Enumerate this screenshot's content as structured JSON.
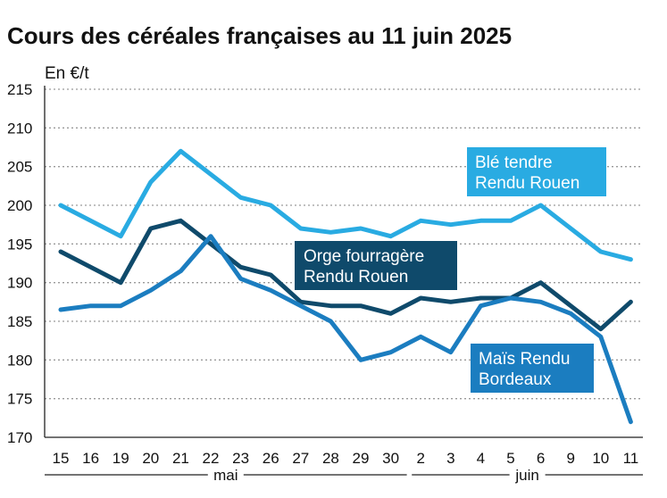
{
  "chart_data": {
    "type": "line",
    "title": "Cours des céréales françaises au 11 juin 2025",
    "unit_label": "En €/t",
    "ylim": [
      170,
      215
    ],
    "yticks": [
      170,
      175,
      180,
      185,
      190,
      195,
      200,
      205,
      210,
      215
    ],
    "grid": true,
    "categories": [
      "15",
      "16",
      "19",
      "20",
      "21",
      "22",
      "23",
      "26",
      "27",
      "28",
      "29",
      "30",
      "2",
      "3",
      "4",
      "5",
      "6",
      "9",
      "10",
      "11"
    ],
    "month_labels": [
      {
        "label": "mai",
        "from": 0,
        "to": 11
      },
      {
        "label": "juin",
        "from": 12,
        "to": 19
      }
    ],
    "series": [
      {
        "name": "Blé tendre Rendu Rouen",
        "name_lines": [
          "Blé tendre",
          "Rendu Rouen"
        ],
        "color": "#29abe2",
        "values": [
          200,
          198,
          196,
          203,
          207,
          204,
          201,
          200,
          197,
          196.5,
          197,
          196,
          198,
          197.5,
          198,
          198,
          200,
          197,
          194,
          193
        ]
      },
      {
        "name": "Orge fourragère Rendu Rouen",
        "name_lines": [
          "Orge fourragère",
          "Rendu Rouen"
        ],
        "color": "#0f4a6b",
        "values": [
          194,
          192,
          190,
          197,
          198,
          195,
          192,
          191,
          187.5,
          187,
          187,
          186,
          188,
          187.5,
          188,
          188,
          190,
          187,
          184,
          187.5
        ]
      },
      {
        "name": "Maïs Rendu Bordeaux",
        "name_lines": [
          "Maïs Rendu",
          "Bordeaux"
        ],
        "color": "#1b7dc0",
        "values": [
          186.5,
          187,
          187,
          189,
          191.5,
          196,
          190.5,
          189,
          187,
          185,
          180,
          181,
          183,
          181,
          187,
          188,
          187.5,
          186,
          183,
          172
        ]
      }
    ]
  }
}
